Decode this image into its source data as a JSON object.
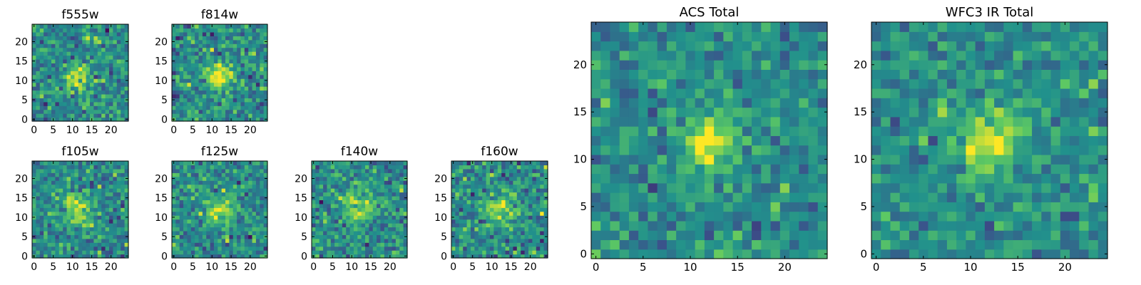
{
  "colormap": "viridis",
  "colors": {
    "viridis_stops": [
      "#440154",
      "#3b528b",
      "#21918c",
      "#5ec962",
      "#fde725"
    ],
    "axes": "#000000",
    "background": "#ffffff"
  },
  "chart_data": [
    {
      "type": "heatmap",
      "title": "f555w",
      "xlabel": "",
      "ylabel": "",
      "xlim": [
        0,
        25
      ],
      "ylim": [
        0,
        25
      ],
      "xticks": [
        0,
        5,
        10,
        15,
        20
      ],
      "yticks": [
        0,
        5,
        10,
        15,
        20
      ],
      "source": {
        "center": [
          11,
          11
        ],
        "amplitude": 0.45,
        "width": 2.0
      },
      "noise": 0.13,
      "seed": 11,
      "grid": false
    },
    {
      "type": "heatmap",
      "title": "f814w",
      "xlabel": "",
      "ylabel": "",
      "xlim": [
        0,
        25
      ],
      "ylim": [
        0,
        25
      ],
      "xticks": [
        0,
        5,
        10,
        15,
        20
      ],
      "yticks": [
        0,
        5,
        10,
        15,
        20
      ],
      "source": {
        "center": [
          12,
          11
        ],
        "amplitude": 0.5,
        "width": 2.2
      },
      "noise": 0.14,
      "seed": 23,
      "grid": false
    },
    {
      "type": "heatmap",
      "title": "f105w",
      "xlabel": "",
      "ylabel": "",
      "xlim": [
        0,
        25
      ],
      "ylim": [
        0,
        25
      ],
      "xticks": [
        0,
        5,
        10,
        15,
        20
      ],
      "yticks": [
        0,
        5,
        10,
        15,
        20
      ],
      "source": {
        "center": [
          11,
          12
        ],
        "amplitude": 0.35,
        "width": 3.0
      },
      "noise": 0.13,
      "seed": 37,
      "grid": false
    },
    {
      "type": "heatmap",
      "title": "f125w",
      "xlabel": "",
      "ylabel": "",
      "xlim": [
        0,
        25
      ],
      "ylim": [
        0,
        25
      ],
      "xticks": [
        0,
        5,
        10,
        15,
        20
      ],
      "yticks": [
        0,
        5,
        10,
        15,
        20
      ],
      "source": {
        "center": [
          12,
          12
        ],
        "amplitude": 0.35,
        "width": 3.0
      },
      "noise": 0.13,
      "seed": 41,
      "grid": false
    },
    {
      "type": "heatmap",
      "title": "f140w",
      "xlabel": "",
      "ylabel": "",
      "xlim": [
        0,
        25
      ],
      "ylim": [
        0,
        25
      ],
      "xticks": [
        0,
        5,
        10,
        15,
        20
      ],
      "yticks": [
        0,
        5,
        10,
        15,
        20
      ],
      "source": {
        "center": [
          12,
          12
        ],
        "amplitude": 0.35,
        "width": 3.0
      },
      "noise": 0.13,
      "seed": 53,
      "grid": false
    },
    {
      "type": "heatmap",
      "title": "f160w",
      "xlabel": "",
      "ylabel": "",
      "xlim": [
        0,
        25
      ],
      "ylim": [
        0,
        25
      ],
      "xticks": [
        0,
        5,
        10,
        15,
        20
      ],
      "yticks": [
        0,
        5,
        10,
        15,
        20
      ],
      "source": {
        "center": [
          12,
          12
        ],
        "amplitude": 0.35,
        "width": 3.0
      },
      "noise": 0.14,
      "seed": 67,
      "grid": false
    },
    {
      "type": "heatmap",
      "title": "ACS Total",
      "xlabel": "",
      "ylabel": "",
      "xlim": [
        0,
        25
      ],
      "ylim": [
        0,
        25
      ],
      "xticks": [
        0,
        5,
        10,
        15,
        20
      ],
      "yticks": [
        0,
        5,
        10,
        15,
        20
      ],
      "source": {
        "center": [
          12,
          12
        ],
        "amplitude": 0.55,
        "width": 2.0
      },
      "noise": 0.11,
      "seed": 79,
      "grid": false
    },
    {
      "type": "heatmap",
      "title": "WFC3 IR Total",
      "xlabel": "",
      "ylabel": "",
      "xlim": [
        0,
        25
      ],
      "ylim": [
        0,
        25
      ],
      "xticks": [
        0,
        5,
        10,
        15,
        20
      ],
      "yticks": [
        0,
        5,
        10,
        15,
        20
      ],
      "source": {
        "center": [
          12,
          12
        ],
        "amplitude": 0.5,
        "width": 2.4
      },
      "noise": 0.11,
      "seed": 97,
      "grid": false
    }
  ]
}
